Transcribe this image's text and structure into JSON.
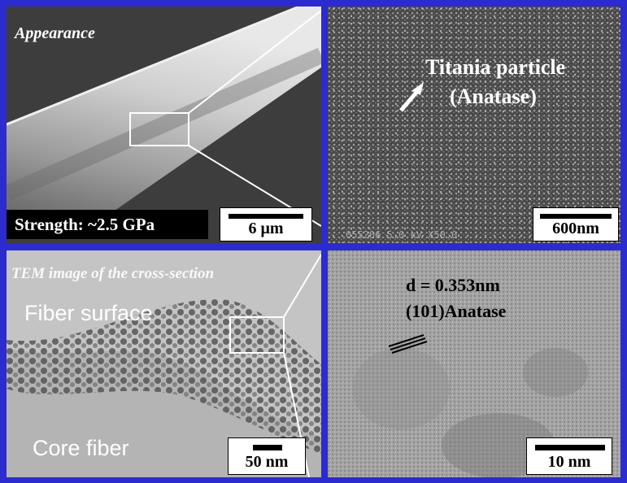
{
  "panels": {
    "top_left": {
      "title": "Appearance",
      "strength_label": "Strength: ~2.5 GPa",
      "scale_label": "6 μm"
    },
    "top_right": {
      "particle_label_line1": "Titania particle",
      "particle_label_line2": "(Anatase)",
      "sem_info": "055206 5.0 kV X50.0",
      "scale_label": "600nm"
    },
    "bottom_left": {
      "title": "TEM image of the cross-section",
      "surface_label": "Fiber surface",
      "core_label": "Core fiber",
      "scale_label": "50 nm"
    },
    "bottom_right": {
      "spacing_label": "d = 0.353nm",
      "phase_label": "(101)Anatase",
      "scale_label": "10 nm"
    }
  },
  "colors": {
    "border": "#2b2bd0",
    "sem_background": "#3a3a3a",
    "tem_background": "#bdbdbd"
  }
}
